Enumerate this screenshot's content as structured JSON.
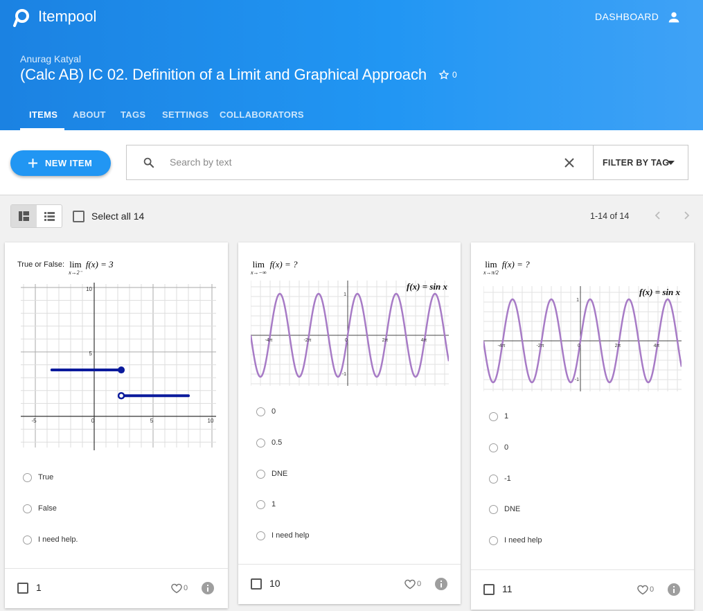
{
  "header": {
    "brand": "Itempool",
    "nav": "DASHBOARD",
    "author": "Anurag Katyal",
    "title": "(Calc AB) IC 02. Definition of a Limit and Graphical Approach",
    "stars": 0,
    "tabs": [
      "ITEMS",
      "ABOUT",
      "TAGS",
      "SETTINGS",
      "COLLABORATORS"
    ]
  },
  "toolbar": {
    "new_item": "NEW ITEM",
    "search_placeholder": "Search by text",
    "filter": "FILTER BY TAG",
    "select_all": "Select all 14",
    "pagination": "1-14 of 14"
  },
  "cards": [
    {
      "prompt_prefix": "True or False:",
      "lim": "lim",
      "lim_sub": "x→2⁻",
      "expr": "f(x) = 3",
      "graph": {
        "y_labels": [
          "10",
          "5"
        ],
        "x_labels": [
          "-5",
          "0",
          "5",
          "10"
        ]
      },
      "choices": [
        "True",
        "False",
        "I need help."
      ],
      "number": 1,
      "likes": 0
    },
    {
      "lim": "lim",
      "lim_sub": "x→−∞",
      "expr": "f(x) = ?",
      "graph": {
        "legend": "f(x) = sin x",
        "y_labels": [
          "1",
          "-1"
        ],
        "x_labels": [
          "-4π",
          "-2π",
          "0",
          "2π",
          "4π"
        ]
      },
      "choices": [
        "0",
        "0.5",
        "DNE",
        "1",
        "I need help"
      ],
      "number": 10,
      "likes": 0
    },
    {
      "lim": "lim",
      "lim_sub": "x→π/2",
      "expr": "f(x) = ?",
      "graph": {
        "legend": "f(x) = sin x",
        "y_labels": [
          "1",
          "-1"
        ],
        "x_labels": [
          "-4π",
          "-2π",
          "0",
          "2π",
          "4π"
        ]
      },
      "choices": [
        "1",
        "0",
        "-1",
        "DNE",
        "I need help"
      ],
      "number": 11,
      "likes": 0
    }
  ]
}
